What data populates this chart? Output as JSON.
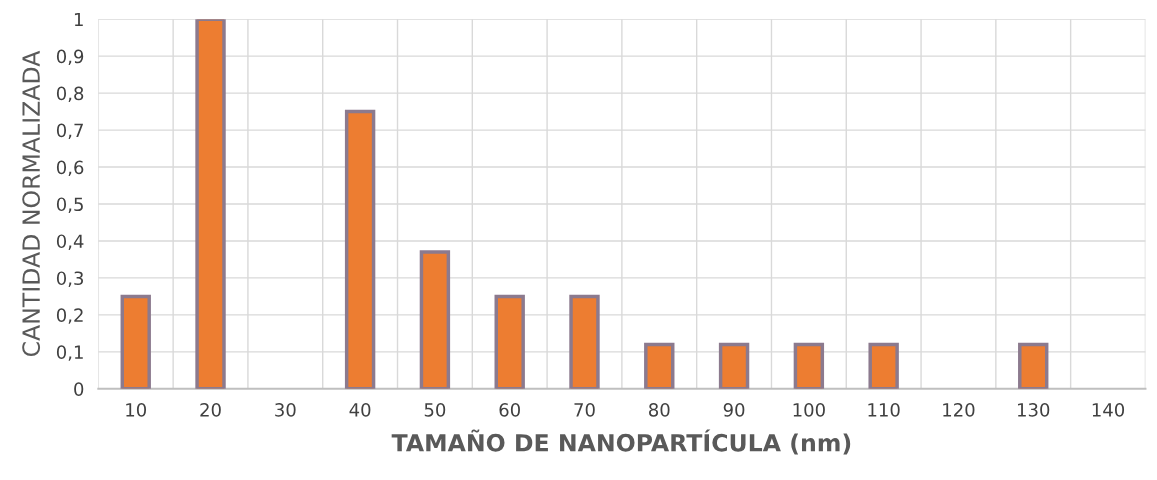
{
  "chart_data": {
    "type": "bar",
    "xlabel": "TAMAÑO DE NANOPARTÍCULA (nm)",
    "ylabel": "CANTIDAD NORMALIZADA",
    "categories": [
      "10",
      "20",
      "30",
      "40",
      "50",
      "60",
      "70",
      "80",
      "90",
      "100",
      "110",
      "120",
      "130",
      "140"
    ],
    "values": [
      0.25,
      1,
      0,
      0.75,
      0.37,
      0.25,
      0.25,
      0.12,
      0.12,
      0.12,
      0.12,
      0,
      0.12,
      0
    ],
    "color": "#ed7d31",
    "ylim": [
      0,
      1
    ],
    "yticks": [
      0,
      {
        "value": 0.1,
        "label": "0,1"
      },
      {
        "value": 0.2,
        "label": "0,2"
      },
      {
        "value": 0.3,
        "label": "0,3"
      },
      {
        "value": 0.4,
        "label": "0,4"
      },
      {
        "value": 0.5,
        "label": "0,5"
      },
      {
        "value": 0.6,
        "label": "0,6"
      },
      {
        "value": 0.7,
        "label": "0,7"
      },
      {
        "value": 0.8,
        "label": "0,8"
      },
      {
        "value": 0.9,
        "label": "0,9"
      },
      1
    ],
    "grid": true
  }
}
